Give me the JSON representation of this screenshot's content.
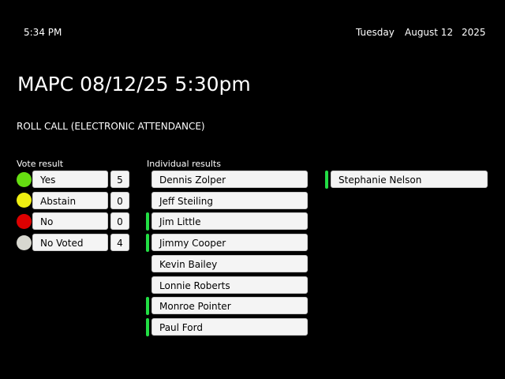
{
  "header": {
    "time": "5:34 PM",
    "day": "Tuesday",
    "date": "August 12",
    "year": "2025"
  },
  "title": "MAPC 08/12/25 5:30pm",
  "subtitle": "ROLL CALL (ELECTRONIC ATTENDANCE)",
  "vote_result": {
    "label": "Vote result",
    "items": [
      {
        "label": "Yes",
        "count": "5",
        "color": "#66dd11"
      },
      {
        "label": "Abstain",
        "count": "0",
        "color": "#eeee11"
      },
      {
        "label": "No",
        "count": "0",
        "color": "#dd0000"
      },
      {
        "label": "No Voted",
        "count": "4",
        "color": "#d8d8d0"
      }
    ]
  },
  "individual": {
    "label": "Individual results",
    "members": [
      {
        "name": "Dennis Zolper",
        "voted": false
      },
      {
        "name": "Jeff Steiling",
        "voted": false
      },
      {
        "name": "Jim Little",
        "voted": true
      },
      {
        "name": "Jimmy Cooper",
        "voted": true
      },
      {
        "name": "Kevin  Bailey",
        "voted": false
      },
      {
        "name": "Lonnie Roberts",
        "voted": false
      },
      {
        "name": "Monroe Pointer",
        "voted": true
      },
      {
        "name": "Paul Ford",
        "voted": true
      },
      {
        "name": "Stephanie Nelson",
        "voted": true
      }
    ]
  },
  "yes_color": "#22dd44"
}
